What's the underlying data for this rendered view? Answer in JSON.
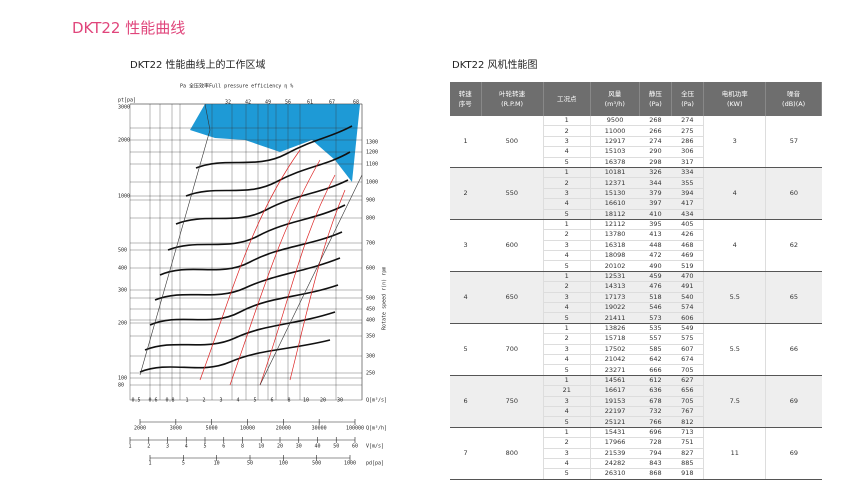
{
  "header": {
    "title": "DKT22 性能曲线"
  },
  "chart": {
    "title": "DKT22 性能曲线上的工作区域",
    "legend": "Pa    全压效率Full pressure efficiency    η  %",
    "left_labels": [
      "pt[pa]",
      "3000",
      "2000",
      "1000",
      "500",
      "400",
      "300",
      "200",
      "100",
      "80"
    ],
    "right_labels": [
      "1300",
      "1200",
      "1100",
      "1000",
      "900",
      "800",
      "700",
      "600",
      "500",
      "450",
      "400",
      "350",
      "300",
      "250"
    ],
    "top_labels": [
      "32",
      "42",
      "49",
      "56",
      "61",
      "67",
      "68"
    ],
    "rotate_label": "Rotate speed r(n)  rpm",
    "q_s_labels": [
      "0.5",
      "0.6",
      "0.8",
      "1",
      "2",
      "3",
      "4",
      "5",
      "6",
      "8",
      "10",
      "20",
      "30"
    ],
    "q_s_unit": "Q[m³/s]",
    "q_h_labels": [
      "2000",
      "3000",
      "5000",
      "10000",
      "20000",
      "30000",
      "100000"
    ],
    "q_h_unit": "Q[m³/h]",
    "v_labels": [
      "1",
      "2",
      "3",
      "4",
      "5",
      "6",
      "8",
      "10",
      "20",
      "30",
      "40",
      "50",
      "60"
    ],
    "v_unit": "V[m/s]",
    "pd_labels": [
      "1",
      "5",
      "10",
      "50",
      "100",
      "500",
      "1000"
    ],
    "pd_unit": "pd[pa]"
  },
  "table": {
    "title": "DKT22 风机性能图",
    "headers": [
      [
        "转速",
        "序号"
      ],
      [
        "叶轮转速",
        "(R.P.M)"
      ],
      [
        "工况点"
      ],
      [
        "风量",
        "(m³/h)"
      ],
      [
        "静压",
        "(Pa)"
      ],
      [
        "全压",
        "(Pa)"
      ],
      [
        "电机功率",
        "(KW)"
      ],
      [
        "噪音",
        "(dB)(A)"
      ]
    ],
    "groups": [
      {
        "no": 1,
        "rpm": 500,
        "power": 3,
        "noise": 57,
        "rows": [
          [
            1,
            9500,
            268,
            274
          ],
          [
            2,
            11000,
            266,
            275
          ],
          [
            3,
            12917,
            274,
            286
          ],
          [
            4,
            15103,
            290,
            306
          ],
          [
            5,
            16378,
            298,
            317
          ]
        ]
      },
      {
        "no": 2,
        "rpm": 550,
        "power": 4,
        "noise": 60,
        "rows": [
          [
            1,
            10181,
            326,
            334
          ],
          [
            2,
            12371,
            344,
            355
          ],
          [
            3,
            15130,
            379,
            394
          ],
          [
            4,
            16610,
            397,
            417
          ],
          [
            5,
            18112,
            410,
            434
          ]
        ]
      },
      {
        "no": 3,
        "rpm": 600,
        "power": 4,
        "noise": 62,
        "rows": [
          [
            1,
            12112,
            395,
            405
          ],
          [
            2,
            13780,
            413,
            426
          ],
          [
            3,
            16318,
            448,
            468
          ],
          [
            4,
            18098,
            472,
            469
          ],
          [
            5,
            20102,
            490,
            519
          ]
        ]
      },
      {
        "no": 4,
        "rpm": 650,
        "power": 5.5,
        "noise": 65,
        "rows": [
          [
            1,
            12531,
            459,
            470
          ],
          [
            2,
            14313,
            476,
            491
          ],
          [
            3,
            17173,
            518,
            540
          ],
          [
            4,
            19022,
            546,
            574
          ],
          [
            5,
            21411,
            573,
            606
          ]
        ]
      },
      {
        "no": 5,
        "rpm": 700,
        "power": 5.5,
        "noise": 66,
        "rows": [
          [
            1,
            13826,
            535,
            549
          ],
          [
            2,
            15718,
            557,
            575
          ],
          [
            3,
            17502,
            585,
            607
          ],
          [
            4,
            21042,
            642,
            674
          ],
          [
            5,
            23271,
            666,
            705
          ]
        ]
      },
      {
        "no": 6,
        "rpm": 750,
        "power": 7.5,
        "noise": 69,
        "rows": [
          [
            1,
            14561,
            612,
            627
          ],
          [
            21,
            16617,
            636,
            656
          ],
          [
            3,
            19153,
            678,
            705
          ],
          [
            4,
            22197,
            732,
            767
          ],
          [
            5,
            25121,
            766,
            812
          ]
        ]
      },
      {
        "no": 7,
        "rpm": 800,
        "power": 11,
        "noise": 69,
        "rows": [
          [
            1,
            15431,
            696,
            713
          ],
          [
            2,
            17966,
            728,
            751
          ],
          [
            3,
            21539,
            794,
            827
          ],
          [
            4,
            24282,
            843,
            885
          ],
          [
            5,
            26310,
            868,
            918
          ]
        ]
      }
    ]
  }
}
